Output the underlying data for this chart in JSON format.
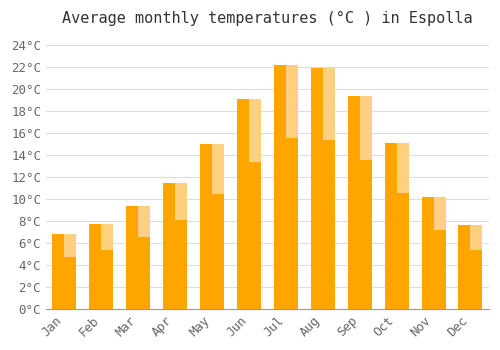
{
  "title": "Average monthly temperatures (°C ) in Espolla",
  "months": [
    "Jan",
    "Feb",
    "Mar",
    "Apr",
    "May",
    "Jun",
    "Jul",
    "Aug",
    "Sep",
    "Oct",
    "Nov",
    "Dec"
  ],
  "values": [
    6.8,
    7.7,
    9.4,
    11.5,
    15.0,
    19.1,
    22.2,
    21.9,
    19.4,
    15.1,
    10.2,
    7.6
  ],
  "bar_color_main": "#FFA500",
  "bar_color_light": "#FFD080",
  "ylim": [
    0,
    25
  ],
  "ytick_step": 2,
  "background_color": "#ffffff",
  "grid_color": "#dddddd",
  "title_fontsize": 11,
  "tick_fontsize": 9,
  "ylabel_suffix": "°C"
}
